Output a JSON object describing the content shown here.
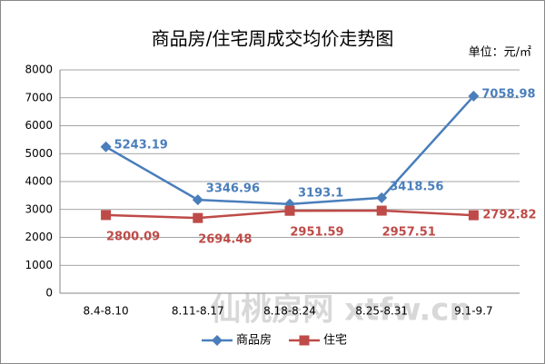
{
  "chart_data": {
    "type": "line",
    "title": "商品房/住宅周成交均价走势图",
    "unit_label": "单位：元/㎡",
    "watermark": "仙桃房网 xtfw.cn",
    "categories": [
      "8.4-8.10",
      "8.11-8.17",
      "8.18-8.24",
      "8.25-8.31",
      "9.1-9.7"
    ],
    "series": [
      {
        "name": "商品房",
        "color": "#4a7ebb",
        "marker": "diamond",
        "values": [
          5243.19,
          3346.96,
          3193.1,
          3418.56,
          7058.98
        ]
      },
      {
        "name": "住宅",
        "color": "#be4b48",
        "marker": "square",
        "values": [
          2800.09,
          2694.48,
          2951.59,
          2957.51,
          2792.82
        ]
      }
    ],
    "ylim": [
      0,
      8000
    ],
    "yticks": [
      0,
      1000,
      2000,
      3000,
      4000,
      5000,
      6000,
      7000,
      8000
    ],
    "grid": true,
    "legend": "bottom"
  }
}
